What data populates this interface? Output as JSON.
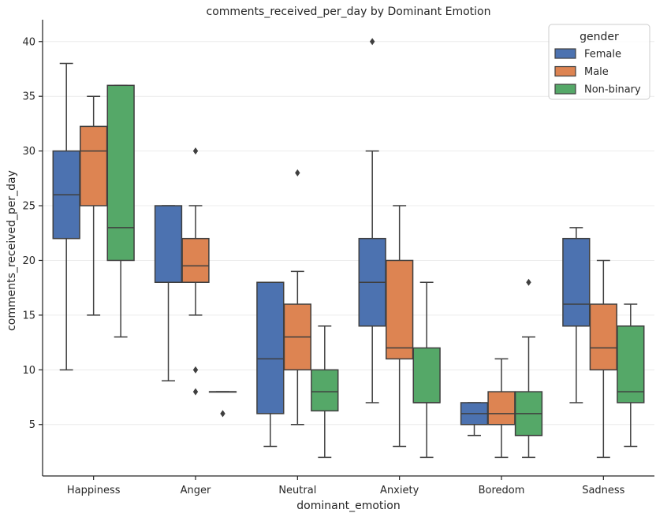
{
  "chart_data": {
    "type": "box",
    "title": "comments_received_per_day by Dominant Emotion",
    "xlabel": "dominant_emotion",
    "ylabel": "comments_received_per_day",
    "ylim": [
      0.3,
      42
    ],
    "yticks": [
      5,
      10,
      15,
      20,
      25,
      30,
      35,
      40
    ],
    "grid": true,
    "legend": {
      "title": "gender",
      "placement": "top-right"
    },
    "categories": [
      "Happiness",
      "Anger",
      "Neutral",
      "Anxiety",
      "Boredom",
      "Sadness"
    ],
    "series": [
      {
        "name": "Female",
        "color": "#4c72b0",
        "boxes": [
          {
            "category": "Happiness",
            "whisker_low": 10,
            "q1": 22,
            "median": 26,
            "q3": 30,
            "whisker_high": 38,
            "outliers": []
          },
          {
            "category": "Anger",
            "whisker_low": 9,
            "q1": 18,
            "median": 18,
            "q3": 25,
            "whisker_high": 25,
            "outliers": []
          },
          {
            "category": "Neutral",
            "whisker_low": 3,
            "q1": 6,
            "median": 11,
            "q3": 18,
            "whisker_high": 18,
            "outliers": []
          },
          {
            "category": "Anxiety",
            "whisker_low": 7,
            "q1": 14,
            "median": 18,
            "q3": 22,
            "whisker_high": 30,
            "outliers": [
              40
            ]
          },
          {
            "category": "Boredom",
            "whisker_low": 4,
            "q1": 5,
            "median": 6,
            "q3": 7,
            "whisker_high": 7,
            "outliers": []
          },
          {
            "category": "Sadness",
            "whisker_low": 7,
            "q1": 14,
            "median": 16,
            "q3": 22,
            "whisker_high": 23,
            "outliers": []
          }
        ]
      },
      {
        "name": "Male",
        "color": "#dd8452",
        "boxes": [
          {
            "category": "Happiness",
            "whisker_low": 15,
            "q1": 25,
            "median": 30,
            "q3": 32.25,
            "whisker_high": 35,
            "outliers": []
          },
          {
            "category": "Anger",
            "whisker_low": 15,
            "q1": 18,
            "median": 19.5,
            "q3": 22,
            "whisker_high": 25,
            "outliers": [
              30,
              10,
              8
            ]
          },
          {
            "category": "Neutral",
            "whisker_low": 5,
            "q1": 10,
            "median": 13,
            "q3": 16,
            "whisker_high": 19,
            "outliers": [
              28
            ]
          },
          {
            "category": "Anxiety",
            "whisker_low": 3,
            "q1": 11,
            "median": 12,
            "q3": 20,
            "whisker_high": 25,
            "outliers": []
          },
          {
            "category": "Boredom",
            "whisker_low": 2,
            "q1": 5,
            "median": 6,
            "q3": 8,
            "whisker_high": 11,
            "outliers": []
          },
          {
            "category": "Sadness",
            "whisker_low": 2,
            "q1": 10,
            "median": 12,
            "q3": 16,
            "whisker_high": 20,
            "outliers": []
          }
        ]
      },
      {
        "name": "Non-binary",
        "color": "#55a868",
        "boxes": [
          {
            "category": "Happiness",
            "whisker_low": 13,
            "q1": 20,
            "median": 23,
            "q3": 36,
            "whisker_high": 36,
            "outliers": []
          },
          {
            "category": "Anger",
            "whisker_low": 8,
            "q1": 8,
            "median": 8,
            "q3": 8,
            "whisker_high": 8,
            "outliers": [
              6
            ]
          },
          {
            "category": "Neutral",
            "whisker_low": 2,
            "q1": 6.25,
            "median": 8,
            "q3": 10,
            "whisker_high": 14,
            "outliers": []
          },
          {
            "category": "Anxiety",
            "whisker_low": 2,
            "q1": 7,
            "median": 7,
            "q3": 12,
            "whisker_high": 18,
            "outliers": []
          },
          {
            "category": "Boredom",
            "whisker_low": 2,
            "q1": 4,
            "median": 6,
            "q3": 8,
            "whisker_high": 13,
            "outliers": [
              18
            ]
          },
          {
            "category": "Sadness",
            "whisker_low": 3,
            "q1": 7,
            "median": 8,
            "q3": 14,
            "whisker_high": 16,
            "outliers": []
          }
        ]
      }
    ]
  }
}
